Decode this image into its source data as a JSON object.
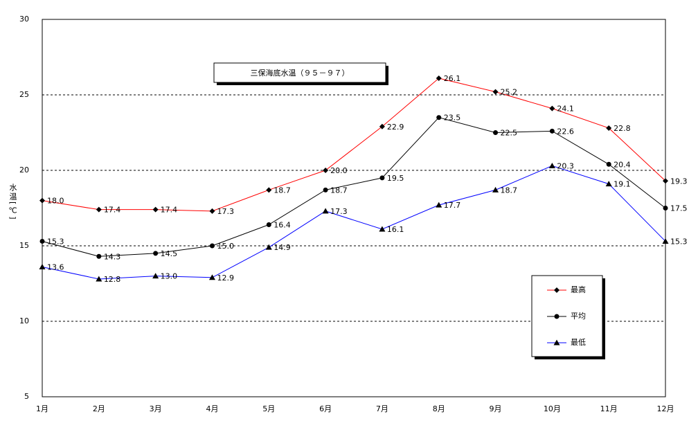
{
  "chart_data": {
    "type": "line",
    "title": "三保海底水温（９５－９７）",
    "y_label": "水温[℃]",
    "categories": [
      "1月",
      "2月",
      "3月",
      "4月",
      "5月",
      "6月",
      "7月",
      "8月",
      "9月",
      "10月",
      "11月",
      "12月"
    ],
    "series": [
      {
        "name": "最高",
        "color": "#ff0000",
        "marker": "diamond",
        "values": [
          18.0,
          17.4,
          17.4,
          17.3,
          18.7,
          20.0,
          22.9,
          26.1,
          25.2,
          24.1,
          22.8,
          19.3
        ],
        "value_labels": [
          "18.0",
          "17.4",
          "17.4",
          "17.3",
          "18.7",
          "20.0",
          "22.9",
          "26.1",
          "25.2",
          "24.1",
          "22.8",
          "19.3"
        ]
      },
      {
        "name": "平均",
        "color": "#000000",
        "marker": "circle",
        "values": [
          15.3,
          14.3,
          14.5,
          15.0,
          16.4,
          18.7,
          19.5,
          23.5,
          22.5,
          22.6,
          20.4,
          17.5
        ],
        "value_labels": [
          "15.3",
          "14.3",
          "14.5",
          "15.0",
          "16.4",
          "18.7",
          "19.5",
          "23.5",
          "22.5",
          "22.6",
          "20.4",
          "17.5"
        ]
      },
      {
        "name": "最低",
        "color": "#0000ff",
        "marker": "triangle",
        "values": [
          13.6,
          12.8,
          13.0,
          12.9,
          14.9,
          17.3,
          16.1,
          17.7,
          18.7,
          20.3,
          19.1,
          15.3
        ],
        "value_labels": [
          "13.6",
          "12.8",
          "13.0",
          "12.9",
          "14.9",
          "17.3",
          "16.1",
          "17.7",
          "18.7",
          "20.3",
          "19.1",
          "15.3"
        ]
      }
    ],
    "marker_color": "#000000",
    "ylim": [
      5,
      30
    ],
    "yticks": [
      5,
      10,
      15,
      20,
      25,
      30
    ],
    "grid": true,
    "legend": "lower right"
  }
}
